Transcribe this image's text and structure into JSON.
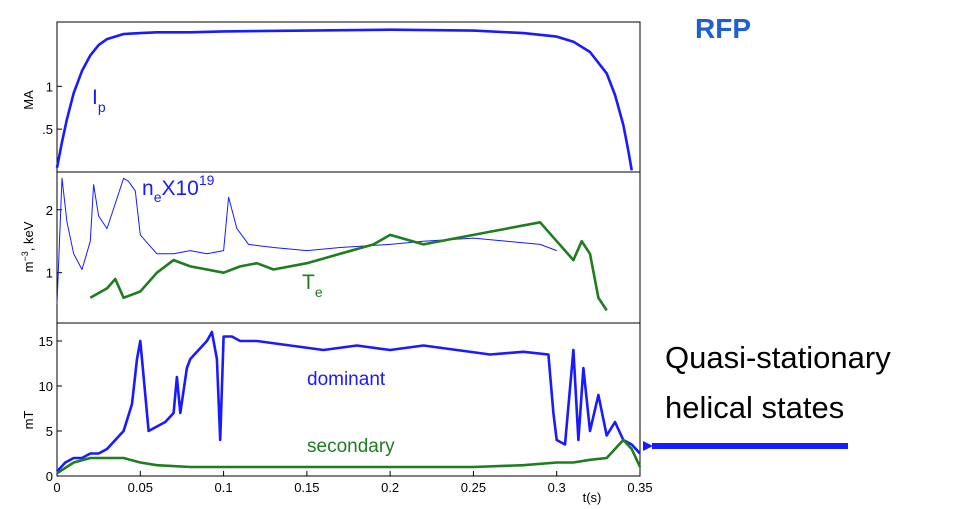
{
  "headline": "RFP",
  "annotation_text": [
    "Quasi-stationary",
    "helical states"
  ],
  "colors": {
    "blue": "#1a1aff",
    "green": "#1e7d1e",
    "headline": "#1f5fcf"
  },
  "chart_data": [
    {
      "type": "line",
      "ylabel": "MA",
      "xlim": [
        0,
        0.35
      ],
      "ylim": [
        0,
        1.75
      ],
      "yticks": [
        ".5",
        "1"
      ],
      "ytick_values": [
        0.5,
        1.0
      ],
      "grid": false,
      "series": [
        {
          "name": "I",
          "subscript": "p",
          "color": "#1a1aff",
          "x": [
            0,
            0.003,
            0.006,
            0.01,
            0.015,
            0.02,
            0.025,
            0.03,
            0.04,
            0.05,
            0.06,
            0.08,
            0.1,
            0.15,
            0.2,
            0.25,
            0.28,
            0.3,
            0.31,
            0.32,
            0.33,
            0.335,
            0.34,
            0.343,
            0.345
          ],
          "y": [
            0.05,
            0.35,
            0.62,
            0.92,
            1.18,
            1.36,
            1.48,
            1.55,
            1.61,
            1.62,
            1.63,
            1.63,
            1.64,
            1.65,
            1.66,
            1.65,
            1.62,
            1.58,
            1.52,
            1.4,
            1.15,
            0.9,
            0.55,
            0.25,
            0.02
          ]
        }
      ]
    },
    {
      "type": "line",
      "ylabel_main": "m",
      "ylabel_exp": "−3",
      "ylabel_rest": ", keV",
      "xlim": [
        0,
        0.35
      ],
      "ylim": [
        0.2,
        2.6
      ],
      "yticks": [
        "1",
        "2"
      ],
      "ytick_values": [
        1,
        2
      ],
      "grid": false,
      "series": [
        {
          "name": "n",
          "subscript": "e",
          "suffix": "X10",
          "superscript": "19",
          "color": "#1a1aff",
          "x": [
            0,
            0.003,
            0.006,
            0.01,
            0.015,
            0.02,
            0.022,
            0.025,
            0.03,
            0.035,
            0.04,
            0.043,
            0.047,
            0.05,
            0.055,
            0.06,
            0.07,
            0.08,
            0.09,
            0.1,
            0.103,
            0.108,
            0.115,
            0.13,
            0.15,
            0.17,
            0.2,
            0.22,
            0.25,
            0.27,
            0.29,
            0.3
          ],
          "y": [
            0.5,
            2.5,
            1.8,
            1.3,
            1.05,
            1.5,
            2.4,
            1.9,
            1.7,
            2.1,
            2.5,
            2.45,
            2.3,
            1.6,
            1.45,
            1.3,
            1.3,
            1.35,
            1.3,
            1.35,
            2.2,
            1.7,
            1.45,
            1.4,
            1.35,
            1.4,
            1.45,
            1.5,
            1.55,
            1.5,
            1.45,
            1.35
          ]
        },
        {
          "name": "T",
          "subscript": "e",
          "color": "#1e7d1e",
          "x": [
            0.02,
            0.03,
            0.035,
            0.04,
            0.05,
            0.06,
            0.07,
            0.08,
            0.09,
            0.1,
            0.11,
            0.12,
            0.13,
            0.15,
            0.17,
            0.19,
            0.2,
            0.22,
            0.25,
            0.27,
            0.29,
            0.3,
            0.31,
            0.315,
            0.32,
            0.325,
            0.33
          ],
          "y": [
            0.6,
            0.75,
            0.9,
            0.6,
            0.7,
            1.0,
            1.2,
            1.1,
            1.05,
            1.0,
            1.1,
            1.15,
            1.05,
            1.15,
            1.3,
            1.45,
            1.6,
            1.45,
            1.6,
            1.7,
            1.8,
            1.5,
            1.2,
            1.5,
            1.3,
            0.6,
            0.4
          ]
        }
      ]
    },
    {
      "type": "line",
      "ylabel": "mT",
      "xlabel": "t(s)",
      "xlim": [
        0,
        0.35
      ],
      "ylim": [
        0,
        17
      ],
      "xticks": [
        "0",
        "0.05",
        "0.1",
        "0.15",
        "0.2",
        "0.25",
        "0.3",
        "0.35"
      ],
      "xtick_values": [
        0,
        0.05,
        0.1,
        0.15,
        0.2,
        0.25,
        0.3,
        0.35
      ],
      "yticks": [
        "0",
        "5",
        "10",
        "15"
      ],
      "ytick_values": [
        0,
        5,
        10,
        15
      ],
      "grid": false,
      "series": [
        {
          "name": "dominant",
          "color": "#1a1aff",
          "x": [
            0,
            0.005,
            0.01,
            0.015,
            0.02,
            0.025,
            0.03,
            0.035,
            0.04,
            0.045,
            0.048,
            0.05,
            0.053,
            0.055,
            0.06,
            0.065,
            0.07,
            0.072,
            0.074,
            0.078,
            0.08,
            0.085,
            0.09,
            0.093,
            0.096,
            0.098,
            0.1,
            0.105,
            0.11,
            0.12,
            0.14,
            0.16,
            0.18,
            0.2,
            0.22,
            0.24,
            0.26,
            0.28,
            0.295,
            0.298,
            0.3,
            0.305,
            0.31,
            0.313,
            0.316,
            0.32,
            0.325,
            0.33,
            0.335,
            0.34,
            0.345,
            0.35
          ],
          "y": [
            0.5,
            1.5,
            2.0,
            2.0,
            2.5,
            2.5,
            3.0,
            4.0,
            5.0,
            8.0,
            13.0,
            15.0,
            9.0,
            5.0,
            5.5,
            6.0,
            7.0,
            11.0,
            7.0,
            12.0,
            13.0,
            14.0,
            15.0,
            16.0,
            13.0,
            4.0,
            15.5,
            15.5,
            15.0,
            15.0,
            14.5,
            14.0,
            14.5,
            14.0,
            14.5,
            14.0,
            13.5,
            13.8,
            13.5,
            7.0,
            4.0,
            3.5,
            14.0,
            4.0,
            12.0,
            5.0,
            9.0,
            4.5,
            6.0,
            4.0,
            3.5,
            2.5
          ]
        },
        {
          "name": "secondary",
          "color": "#1e7d1e",
          "x": [
            0,
            0.01,
            0.02,
            0.03,
            0.04,
            0.05,
            0.06,
            0.08,
            0.1,
            0.12,
            0.15,
            0.2,
            0.25,
            0.28,
            0.3,
            0.31,
            0.32,
            0.33,
            0.335,
            0.34,
            0.345,
            0.35
          ],
          "y": [
            0.3,
            1.5,
            2.0,
            2.0,
            2.0,
            1.5,
            1.2,
            1.0,
            1.0,
            1.0,
            1.0,
            1.0,
            1.0,
            1.2,
            1.5,
            1.5,
            1.8,
            2.0,
            3.0,
            4.0,
            3.0,
            1.0
          ]
        }
      ]
    }
  ]
}
